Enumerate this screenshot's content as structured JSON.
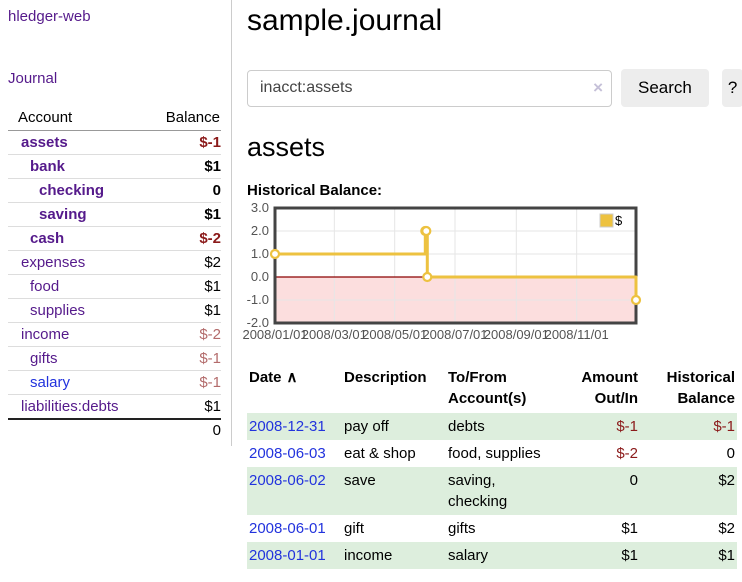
{
  "app": {
    "brand": "hledger-web"
  },
  "sidebar": {
    "nav": [
      {
        "label": "Journal"
      }
    ],
    "accounts": {
      "headers": {
        "account": "Account",
        "balance": "Balance"
      },
      "rows": [
        {
          "account": "assets",
          "balance": "$-1"
        },
        {
          "account": "bank",
          "balance": "$1"
        },
        {
          "account": "checking",
          "balance": "0"
        },
        {
          "account": "saving",
          "balance": "$1"
        },
        {
          "account": "cash",
          "balance": "$-2"
        },
        {
          "account": "expenses",
          "balance": "$2"
        },
        {
          "account": "food",
          "balance": "$1"
        },
        {
          "account": "supplies",
          "balance": "$1"
        },
        {
          "account": "income",
          "balance": "$-2"
        },
        {
          "account": "gifts",
          "balance": "$-1"
        },
        {
          "account": "salary",
          "balance": "$-1"
        },
        {
          "account": "liabilities:debts",
          "balance": "$1"
        }
      ],
      "total": "0"
    }
  },
  "main": {
    "title": "sample.journal",
    "search": {
      "value": "inacct:assets",
      "button_label": "Search",
      "help_label": "?"
    },
    "account_heading": "assets",
    "chart_label": "Historical Balance:"
  },
  "icons": {
    "clear_search": "×",
    "sort_ascending": "∧"
  },
  "chart_data": {
    "type": "line",
    "step": true,
    "title": "Historical Balance",
    "xlim": [
      "2008-01-01",
      "2008-12-31"
    ],
    "ylim": [
      -2,
      3
    ],
    "yticks": [
      3.0,
      2.0,
      1.0,
      0.0,
      -1.0,
      -2.0
    ],
    "xticks": [
      "2008/01/01",
      "2008/03/01",
      "2008/05/01",
      "2008/07/01",
      "2008/09/01",
      "2008/11/01"
    ],
    "grid": true,
    "legend_position": "top-right",
    "series": [
      {
        "name": "$",
        "color": "#edc240",
        "points": [
          [
            "2008-01-01",
            1
          ],
          [
            "2008-06-01",
            2
          ],
          [
            "2008-06-02",
            2
          ],
          [
            "2008-06-03",
            0
          ],
          [
            "2008-12-31",
            -1
          ]
        ]
      }
    ],
    "negative_fill": "#fcdede",
    "zero_line_color": "#8b0000",
    "grid_color": "#e6e6e6",
    "border_color": "#444444",
    "tick_color": "#545454"
  },
  "transactions": {
    "sort": {
      "label": "Date"
    },
    "headers": {
      "date": "Date",
      "description": "Description",
      "accounts": "To/From Account(s)",
      "amount": "Amount Out/In",
      "balance": "Historical Balance"
    },
    "rows": [
      {
        "date": "2008-12-31",
        "description": "pay off",
        "accounts": "debts",
        "amount": "$-1",
        "balance": "$-1"
      },
      {
        "date": "2008-06-03",
        "description": "eat & shop",
        "accounts": "food, supplies",
        "amount": "$-2",
        "balance": "0"
      },
      {
        "date": "2008-06-02",
        "description": "save",
        "accounts": "saving, checking",
        "amount": "0",
        "balance": "$2"
      },
      {
        "date": "2008-06-01",
        "description": "gift",
        "accounts": "gifts",
        "amount": "$1",
        "balance": "$2"
      },
      {
        "date": "2008-01-01",
        "description": "income",
        "accounts": "salary",
        "amount": "$1",
        "balance": "$1"
      }
    ]
  },
  "colors": {
    "accent_purple": "#551a8b",
    "link_blue": "#2233dd",
    "negative_strong": "#8b1a1a",
    "negative_muted": "#b36b6b",
    "row_highlight_green": "#ddeedd",
    "chart_series_gold": "#edc240"
  }
}
